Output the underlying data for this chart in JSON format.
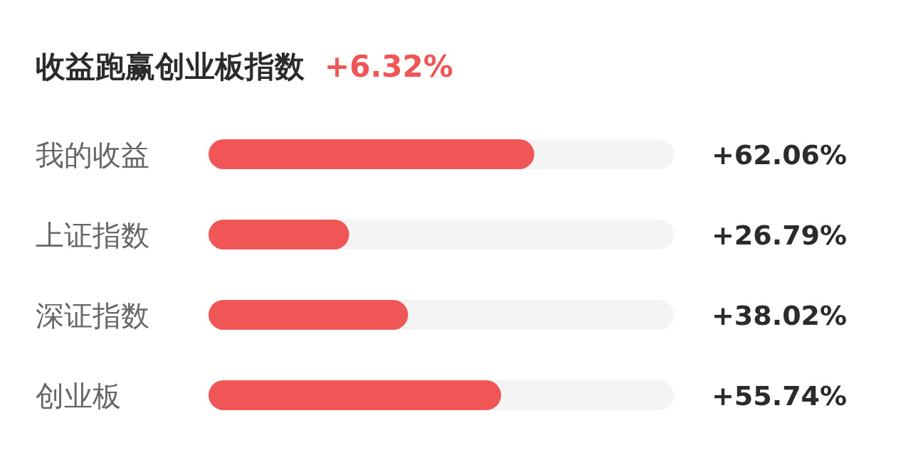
{
  "chart_data": {
    "type": "bar",
    "orientation": "horizontal",
    "title": "收益跑赢创业板指数",
    "subtitle": "+6.32%",
    "categories": [
      "我的收益",
      "上证指数",
      "深证指数",
      "创业板"
    ],
    "values": [
      62.06,
      26.79,
      38.02,
      55.74
    ],
    "value_labels": [
      "+62.06%",
      "+26.79%",
      "+38.02%",
      "+55.74%"
    ],
    "color": "#f05656",
    "tick_labels": "y"
  }
}
